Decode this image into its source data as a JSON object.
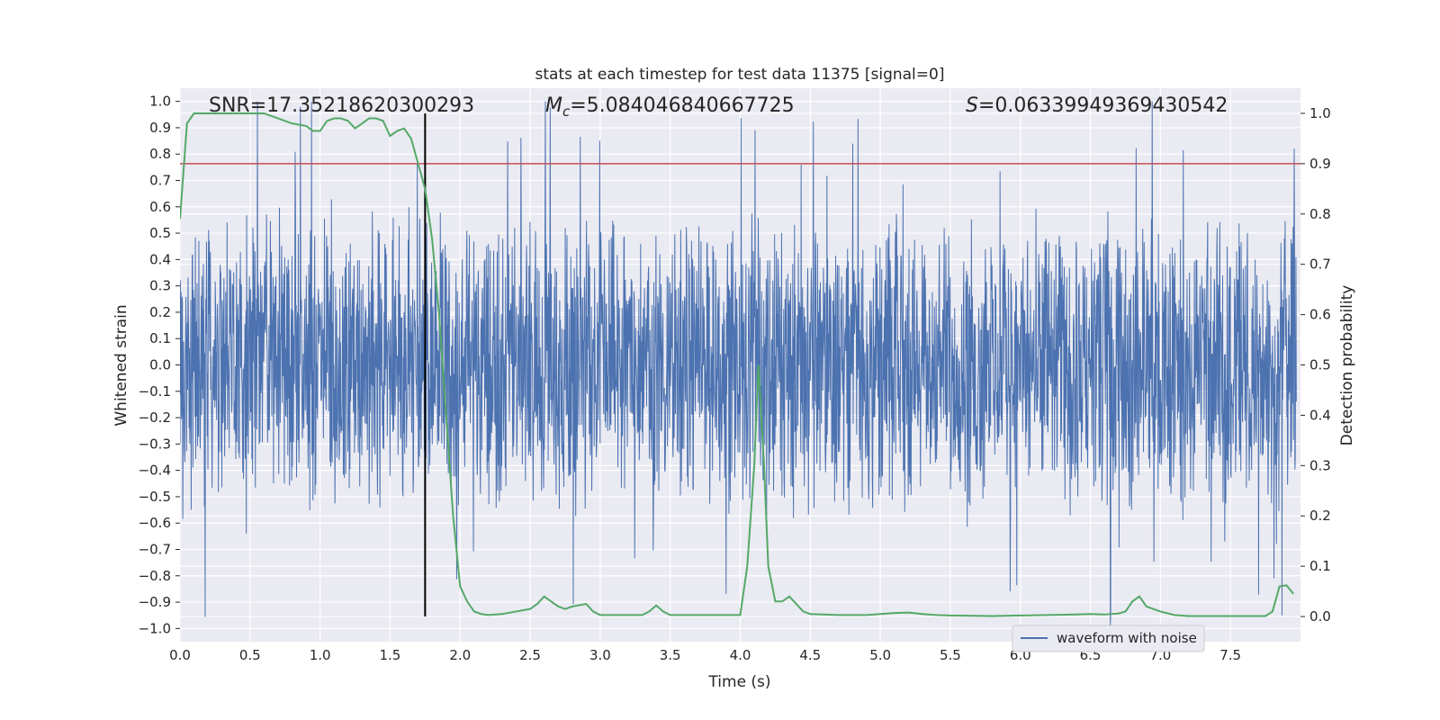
{
  "chart_data": {
    "type": "line",
    "title": "stats at each timestep for test data 11375 [signal=0]",
    "xlabel": "Time (s)",
    "ylabel_left": "Whitened strain",
    "ylabel_right": "Detection probability",
    "xlim": [
      0.0,
      8.0
    ],
    "ylim_left": [
      -1.05,
      1.05
    ],
    "ylim_right": [
      -0.05,
      1.05
    ],
    "xticks": [
      0.0,
      0.5,
      1.0,
      1.5,
      2.0,
      2.5,
      3.0,
      3.5,
      4.0,
      4.5,
      5.0,
      5.5,
      6.0,
      6.5,
      7.0,
      7.5
    ],
    "xtick_labels": [
      "0.0",
      "0.5",
      "1.0",
      "1.5",
      "2.0",
      "2.5",
      "3.0",
      "3.5",
      "4.0",
      "4.5",
      "5.0",
      "5.5",
      "6.0",
      "6.5",
      "7.0",
      "7.5"
    ],
    "yticks_left": [
      -1.0,
      -0.9,
      -0.8,
      -0.7,
      -0.6,
      -0.5,
      -0.4,
      -0.3,
      -0.2,
      -0.1,
      0.0,
      0.1,
      0.2,
      0.3,
      0.4,
      0.5,
      0.6,
      0.7,
      0.8,
      0.9,
      1.0
    ],
    "ytick_labels_left": [
      "−1.0",
      "−0.9",
      "−0.8",
      "−0.7",
      "−0.6",
      "−0.5",
      "−0.4",
      "−0.3",
      "−0.2",
      "−0.1",
      "0.0",
      "0.1",
      "0.2",
      "0.3",
      "0.4",
      "0.5",
      "0.6",
      "0.7",
      "0.8",
      "0.9",
      "1.0"
    ],
    "yticks_right": [
      0.0,
      0.1,
      0.2,
      0.3,
      0.4,
      0.5,
      0.6,
      0.7,
      0.8,
      0.9,
      1.0
    ],
    "ytick_labels_right": [
      "0.0",
      "0.1",
      "0.2",
      "0.3",
      "0.4",
      "0.5",
      "0.6",
      "0.7",
      "0.8",
      "0.9",
      "1.0"
    ],
    "grid": true,
    "legend": {
      "location": "lower-right",
      "entries": [
        "waveform with noise"
      ]
    },
    "annotations": {
      "snr": "SNR=17.35218620300293",
      "mc_symbol": "M",
      "mc_sub": "c",
      "mc_value": "=5.084046840667725",
      "s_symbol": "S",
      "s_value": "=0.06339949369430542"
    },
    "threshold_right": 0.9,
    "marker_time": 1.75,
    "series": [
      {
        "name": "waveform with noise",
        "axis": "left",
        "style": "dense noise, typical amplitude ±0.5, peaks up to ±1.0"
      },
      {
        "axis": "right",
        "x": [
          0.0,
          0.05,
          0.1,
          0.2,
          0.3,
          0.4,
          0.5,
          0.6,
          0.7,
          0.8,
          0.9,
          0.95,
          1.0,
          1.05,
          1.1,
          1.15,
          1.2,
          1.25,
          1.3,
          1.35,
          1.4,
          1.45,
          1.5,
          1.55,
          1.6,
          1.65,
          1.7,
          1.75,
          1.8,
          1.85,
          1.9,
          1.95,
          2.0,
          2.05,
          2.1,
          2.15,
          2.2,
          2.3,
          2.4,
          2.5,
          2.55,
          2.6,
          2.65,
          2.7,
          2.75,
          2.8,
          2.9,
          2.95,
          3.0,
          3.1,
          3.2,
          3.3,
          3.35,
          3.4,
          3.45,
          3.5,
          3.6,
          3.7,
          3.8,
          3.9,
          4.0,
          4.05,
          4.1,
          4.13,
          4.17,
          4.2,
          4.25,
          4.3,
          4.35,
          4.4,
          4.45,
          4.5,
          4.7,
          4.9,
          5.0,
          5.1,
          5.2,
          5.3,
          5.4,
          5.5,
          5.8,
          6.0,
          6.2,
          6.4,
          6.5,
          6.6,
          6.7,
          6.75,
          6.8,
          6.85,
          6.9,
          6.95,
          7.0,
          7.1,
          7.2,
          7.4,
          7.6,
          7.7,
          7.75,
          7.8,
          7.85,
          7.9,
          7.95
        ],
        "values": [
          0.79,
          0.98,
          1.0,
          1.0,
          1.0,
          1.0,
          1.0,
          1.0,
          0.99,
          0.98,
          0.975,
          0.965,
          0.965,
          0.985,
          0.99,
          0.99,
          0.985,
          0.97,
          0.98,
          0.99,
          0.99,
          0.985,
          0.955,
          0.965,
          0.97,
          0.95,
          0.9,
          0.85,
          0.75,
          0.6,
          0.4,
          0.2,
          0.06,
          0.03,
          0.01,
          0.005,
          0.003,
          0.005,
          0.01,
          0.015,
          0.025,
          0.04,
          0.03,
          0.02,
          0.015,
          0.02,
          0.025,
          0.01,
          0.003,
          0.003,
          0.003,
          0.003,
          0.01,
          0.022,
          0.01,
          0.003,
          0.003,
          0.003,
          0.003,
          0.003,
          0.003,
          0.1,
          0.3,
          0.5,
          0.3,
          0.1,
          0.03,
          0.03,
          0.04,
          0.025,
          0.01,
          0.005,
          0.003,
          0.003,
          0.005,
          0.007,
          0.008,
          0.005,
          0.003,
          0.002,
          0.001,
          0.002,
          0.003,
          0.004,
          0.005,
          0.004,
          0.006,
          0.01,
          0.03,
          0.04,
          0.02,
          0.015,
          0.01,
          0.003,
          0.001,
          0.001,
          0.001,
          0.001,
          0.001,
          0.01,
          0.06,
          0.062,
          0.045
        ]
      }
    ]
  },
  "colors": {
    "plot_bg": "#eaeaf2",
    "grid": "#ffffff",
    "waveform": "#4c72b0",
    "probability": "#55a868",
    "threshold": "#c44e52",
    "marker_line": "#000000",
    "text": "#262626"
  }
}
